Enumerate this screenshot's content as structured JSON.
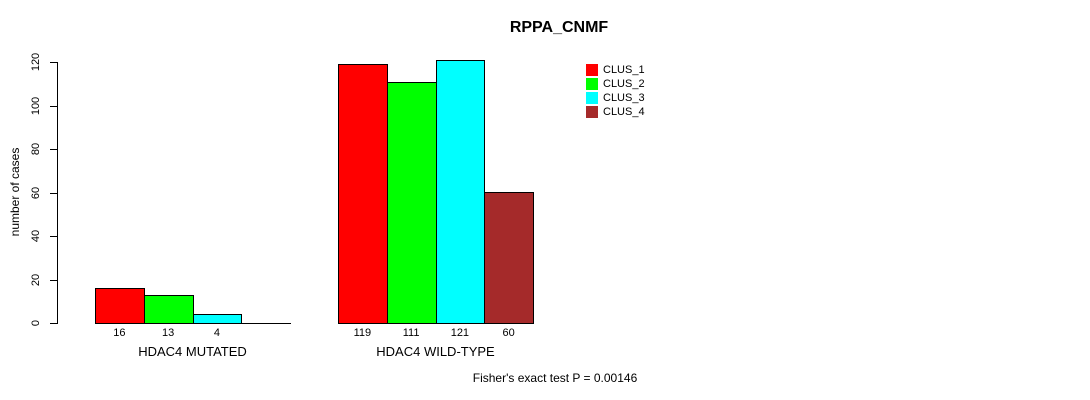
{
  "chart_data": {
    "type": "bar",
    "title": "RPPA_CNMF",
    "ylabel": "number of cases",
    "xlabel": "",
    "ylim": [
      0,
      120
    ],
    "yticks": [
      0,
      20,
      40,
      60,
      80,
      100,
      120
    ],
    "categories": [
      "HDAC4 MUTATED",
      "HDAC4 WILD-TYPE"
    ],
    "series": [
      {
        "name": "CLUS_1",
        "color": "#ff0000",
        "values": [
          16,
          119
        ]
      },
      {
        "name": "CLUS_2",
        "color": "#00ff00",
        "values": [
          13,
          111
        ]
      },
      {
        "name": "CLUS_3",
        "color": "#00ffff",
        "values": [
          4,
          121
        ]
      },
      {
        "name": "CLUS_4",
        "color": "#a52a2a",
        "values": [
          0,
          60
        ]
      }
    ],
    "zero_value_bars_hidden": true,
    "value_labels_shown": true,
    "grid": false,
    "legend_position": "top-right",
    "bar_border_color": "#000000",
    "annotation": "Fisher's exact test P = 0.00146"
  }
}
